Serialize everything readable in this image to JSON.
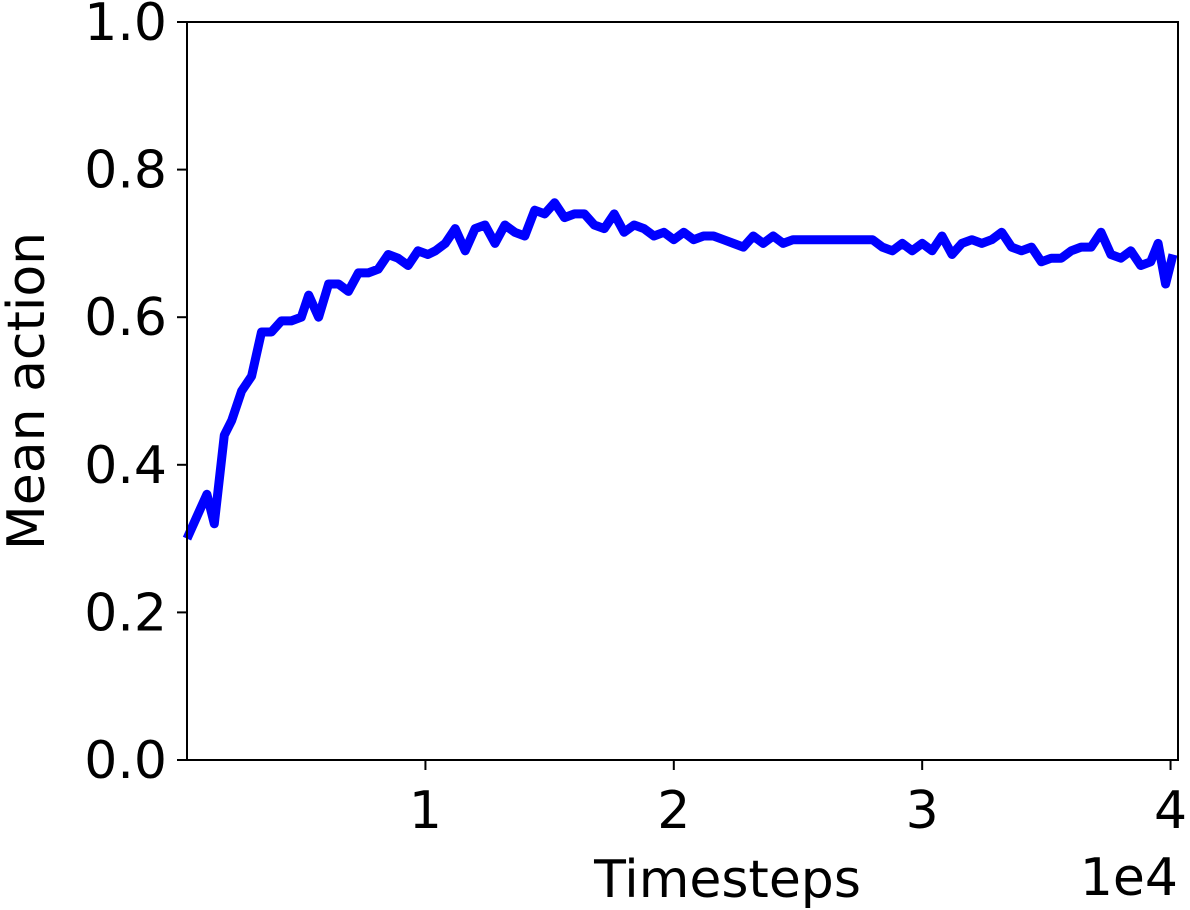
{
  "chart_data": {
    "type": "line",
    "title": "",
    "xlabel": "Timesteps",
    "ylabel": "Mean action",
    "x_offset_label": "1e4",
    "xlim": [
      400,
      40300
    ],
    "ylim": [
      0,
      1
    ],
    "x_ticks": [
      10000,
      20000,
      30000,
      40000
    ],
    "x_tick_labels": [
      "1",
      "2",
      "3",
      "4"
    ],
    "y_ticks": [
      0,
      0.2,
      0.4,
      0.6,
      0.8,
      1.0
    ],
    "y_tick_labels": [
      "0.0",
      "0.2",
      "0.4",
      "0.6",
      "0.8",
      "1.0"
    ],
    "grid": false,
    "legend": "none",
    "line_color": "#0000ff",
    "series": [
      {
        "x": [
          400,
          800,
          1200,
          1500,
          1900,
          2200,
          2600,
          3000,
          3400,
          3800,
          4200,
          4600,
          5000,
          5300,
          5700,
          6100,
          6500,
          6900,
          7300,
          7700,
          8100,
          8500,
          8900,
          9300,
          9700,
          10100,
          10400,
          10800,
          11200,
          11600,
          12000,
          12400,
          12800,
          13200,
          13600,
          14000,
          14400,
          14800,
          15200,
          15600,
          16000,
          16400,
          16800,
          17200,
          17600,
          18000,
          18400,
          18800,
          19200,
          19600,
          20000,
          20400,
          20800,
          21200,
          21600,
          22000,
          22400,
          22800,
          23200,
          23600,
          24000,
          24400,
          24800,
          25200,
          25600,
          26000,
          26400,
          26800,
          27200,
          27600,
          28000,
          28400,
          28800,
          29200,
          29600,
          30000,
          30400,
          30800,
          31200,
          31600,
          32000,
          32400,
          32800,
          33200,
          33600,
          34000,
          34400,
          34800,
          35200,
          35600,
          36000,
          36400,
          36800,
          37200,
          37600,
          38000,
          38400,
          38800,
          39200,
          39500,
          39800,
          40100
        ],
        "y": [
          0.3,
          0.33,
          0.36,
          0.32,
          0.44,
          0.46,
          0.5,
          0.52,
          0.58,
          0.58,
          0.595,
          0.595,
          0.6,
          0.63,
          0.6,
          0.645,
          0.645,
          0.635,
          0.66,
          0.66,
          0.665,
          0.685,
          0.68,
          0.67,
          0.69,
          0.685,
          0.69,
          0.7,
          0.72,
          0.69,
          0.72,
          0.725,
          0.7,
          0.725,
          0.715,
          0.71,
          0.745,
          0.74,
          0.755,
          0.735,
          0.74,
          0.74,
          0.725,
          0.72,
          0.74,
          0.715,
          0.725,
          0.72,
          0.71,
          0.715,
          0.705,
          0.715,
          0.705,
          0.71,
          0.71,
          0.705,
          0.7,
          0.695,
          0.71,
          0.7,
          0.71,
          0.7,
          0.705,
          0.705,
          0.705,
          0.705,
          0.705,
          0.705,
          0.705,
          0.705,
          0.705,
          0.695,
          0.69,
          0.7,
          0.69,
          0.7,
          0.69,
          0.71,
          0.685,
          0.7,
          0.705,
          0.7,
          0.705,
          0.715,
          0.695,
          0.69,
          0.695,
          0.675,
          0.68,
          0.68,
          0.69,
          0.695,
          0.695,
          0.715,
          0.685,
          0.68,
          0.69,
          0.67,
          0.675,
          0.7,
          0.645,
          0.685
        ]
      }
    ]
  }
}
